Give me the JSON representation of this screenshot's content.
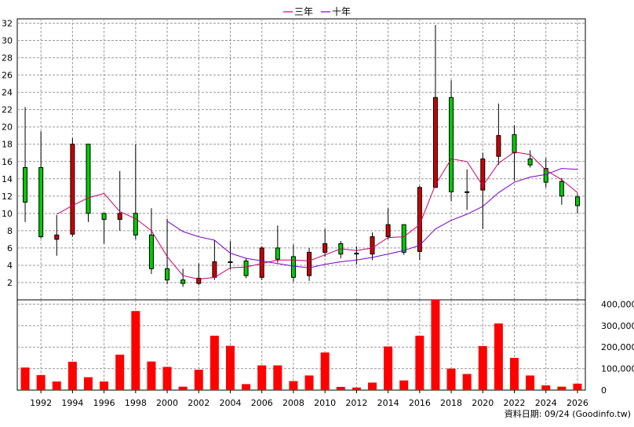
{
  "legend": [
    {
      "name": "三年",
      "color": "#cc0066"
    },
    {
      "name": "十年",
      "color": "#7a00cc"
    }
  ],
  "footer": "資料日期: 09/24  (Goodinfo.tw)",
  "chart_data": {
    "type": "candlestick",
    "x_ticks": [
      "1992",
      "1994",
      "1996",
      "1998",
      "2000",
      "2002",
      "2004",
      "2006",
      "2008",
      "2010",
      "2012",
      "2014",
      "2016",
      "2018",
      "2020",
      "2022",
      "2024",
      "2026"
    ],
    "price_axis": {
      "ylim": [
        0,
        32.5
      ],
      "ticks": [
        2,
        4,
        6,
        8,
        10,
        12,
        14,
        16,
        18,
        20,
        22,
        24,
        26,
        28,
        30,
        32
      ]
    },
    "volume_axis": {
      "ylim": [
        0,
        420000
      ],
      "ticks": [
        "0",
        "100,000",
        "200,000",
        "300,000",
        "400,000"
      ],
      "tick_values": [
        0,
        100000,
        200000,
        300000,
        400000
      ]
    },
    "up_color": "#00cc00",
    "down_color": "#cc0000",
    "volume_color": "#ff0000",
    "candles": [
      {
        "year": 1991,
        "open": 11.3,
        "high": 22.3,
        "low": 9.0,
        "close": 15.3
      },
      {
        "year": 1992,
        "open": 7.3,
        "high": 19.5,
        "low": 7.1,
        "close": 15.3
      },
      {
        "year": 1993,
        "open": 7.5,
        "high": 9.8,
        "low": 5.1,
        "close": 7.0
      },
      {
        "year": 1994,
        "open": 18.0,
        "high": 18.7,
        "low": 7.3,
        "close": 7.6
      },
      {
        "year": 1995,
        "open": 10.0,
        "high": 18.0,
        "low": 9.0,
        "close": 18.0
      },
      {
        "year": 1996,
        "open": 9.3,
        "high": 10.0,
        "low": 6.5,
        "close": 10.0
      },
      {
        "year": 1997,
        "open": 10.0,
        "high": 14.9,
        "low": 8.0,
        "close": 9.3
      },
      {
        "year": 1998,
        "open": 7.5,
        "high": 18.0,
        "low": 7.0,
        "close": 10.0
      },
      {
        "year": 1999,
        "open": 3.6,
        "high": 10.6,
        "low": 3.0,
        "close": 7.5
      },
      {
        "year": 2000,
        "open": 2.3,
        "high": 9.4,
        "low": 1.8,
        "close": 3.6
      },
      {
        "year": 2001,
        "open": 1.9,
        "high": 3.6,
        "low": 1.5,
        "close": 2.3
      },
      {
        "year": 2002,
        "open": 2.5,
        "high": 4.2,
        "low": 1.7,
        "close": 1.9
      },
      {
        "year": 2003,
        "open": 4.4,
        "high": 6.9,
        "low": 2.3,
        "close": 2.6
      },
      {
        "year": 2004,
        "open": 4.4,
        "high": 6.8,
        "low": 3.5,
        "close": 4.4
      },
      {
        "year": 2005,
        "open": 2.8,
        "high": 4.8,
        "low": 2.5,
        "close": 4.5
      },
      {
        "year": 2006,
        "open": 6.0,
        "high": 6.2,
        "low": 2.3,
        "close": 2.6
      },
      {
        "year": 2007,
        "open": 4.7,
        "high": 8.6,
        "low": 4.3,
        "close": 6.0
      },
      {
        "year": 2008,
        "open": 2.6,
        "high": 6.4,
        "low": 2.1,
        "close": 5.0
      },
      {
        "year": 2009,
        "open": 5.5,
        "high": 6.0,
        "low": 2.2,
        "close": 2.8
      },
      {
        "year": 2010,
        "open": 6.5,
        "high": 8.2,
        "low": 5.0,
        "close": 5.5
      },
      {
        "year": 2011,
        "open": 5.3,
        "high": 6.8,
        "low": 4.8,
        "close": 6.5
      },
      {
        "year": 2012,
        "open": 5.4,
        "high": 6.2,
        "low": 4.1,
        "close": 5.3
      },
      {
        "year": 2013,
        "open": 7.3,
        "high": 7.8,
        "low": 4.6,
        "close": 5.3
      },
      {
        "year": 2014,
        "open": 8.7,
        "high": 10.6,
        "low": 7.0,
        "close": 7.3
      },
      {
        "year": 2015,
        "open": 5.5,
        "high": 8.7,
        "low": 5.2,
        "close": 8.7
      },
      {
        "year": 2016,
        "open": 13.0,
        "high": 13.2,
        "low": 4.6,
        "close": 5.6
      },
      {
        "year": 2017,
        "open": 23.4,
        "high": 31.8,
        "low": 13.0,
        "close": 13.0
      },
      {
        "year": 2018,
        "open": 12.5,
        "high": 25.4,
        "low": 11.4,
        "close": 23.4
      },
      {
        "year": 2019,
        "open": 12.5,
        "high": 15.1,
        "low": 10.4,
        "close": 12.5
      },
      {
        "year": 2020,
        "open": 16.3,
        "high": 17.0,
        "low": 8.2,
        "close": 12.7
      },
      {
        "year": 2021,
        "open": 19.0,
        "high": 22.7,
        "low": 15.6,
        "close": 16.6
      },
      {
        "year": 2022,
        "open": 17.0,
        "high": 20.2,
        "low": 13.8,
        "close": 19.1
      },
      {
        "year": 2023,
        "open": 15.6,
        "high": 17.3,
        "low": 15.3,
        "close": 16.3
      },
      {
        "year": 2024,
        "open": 13.6,
        "high": 16.4,
        "low": 13.0,
        "close": 15.2
      },
      {
        "year": 2025,
        "open": 12.0,
        "high": 14.1,
        "low": 11.0,
        "close": 13.7
      },
      {
        "year": 2026,
        "open": 10.9,
        "high": 12.3,
        "low": 10.0,
        "close": 11.9
      }
    ],
    "volume": [
      {
        "year": 1991,
        "value": 105000
      },
      {
        "year": 1992,
        "value": 70000
      },
      {
        "year": 1993,
        "value": 40000
      },
      {
        "year": 1994,
        "value": 132000
      },
      {
        "year": 1995,
        "value": 60000
      },
      {
        "year": 1996,
        "value": 40000
      },
      {
        "year": 1997,
        "value": 165000
      },
      {
        "year": 1998,
        "value": 368000
      },
      {
        "year": 1999,
        "value": 133000
      },
      {
        "year": 2000,
        "value": 108000
      },
      {
        "year": 2001,
        "value": 16000
      },
      {
        "year": 2002,
        "value": 95000
      },
      {
        "year": 2003,
        "value": 253000
      },
      {
        "year": 2004,
        "value": 206000
      },
      {
        "year": 2005,
        "value": 28000
      },
      {
        "year": 2006,
        "value": 115000
      },
      {
        "year": 2007,
        "value": 115000
      },
      {
        "year": 2008,
        "value": 42000
      },
      {
        "year": 2009,
        "value": 68000
      },
      {
        "year": 2010,
        "value": 175000
      },
      {
        "year": 2011,
        "value": 15000
      },
      {
        "year": 2012,
        "value": 12000
      },
      {
        "year": 2013,
        "value": 35000
      },
      {
        "year": 2014,
        "value": 203000
      },
      {
        "year": 2015,
        "value": 45000
      },
      {
        "year": 2016,
        "value": 253000
      },
      {
        "year": 2017,
        "value": 425000
      },
      {
        "year": 2018,
        "value": 100000
      },
      {
        "year": 2019,
        "value": 75000
      },
      {
        "year": 2020,
        "value": 205000
      },
      {
        "year": 2021,
        "value": 310000
      },
      {
        "year": 2022,
        "value": 150000
      },
      {
        "year": 2023,
        "value": 68000
      },
      {
        "year": 2024,
        "value": 22000
      },
      {
        "year": 2025,
        "value": 16000
      },
      {
        "year": 2026,
        "value": 30000
      }
    ],
    "series": [
      {
        "name": "三年",
        "color": "#cc0066",
        "points": [
          {
            "year": 1993,
            "value": 9.9
          },
          {
            "year": 1994,
            "value": 10.9
          },
          {
            "year": 1995,
            "value": 11.8
          },
          {
            "year": 1996,
            "value": 12.3
          },
          {
            "year": 1997,
            "value": 10.2
          },
          {
            "year": 1998,
            "value": 9.4
          },
          {
            "year": 1999,
            "value": 8.0
          },
          {
            "year": 2000,
            "value": 5.0
          },
          {
            "year": 2001,
            "value": 2.8
          },
          {
            "year": 2002,
            "value": 2.4
          },
          {
            "year": 2003,
            "value": 2.6
          },
          {
            "year": 2004,
            "value": 3.7
          },
          {
            "year": 2005,
            "value": 3.8
          },
          {
            "year": 2006,
            "value": 4.2
          },
          {
            "year": 2007,
            "value": 4.6
          },
          {
            "year": 2008,
            "value": 4.6
          },
          {
            "year": 2009,
            "value": 4.5
          },
          {
            "year": 2010,
            "value": 5.2
          },
          {
            "year": 2011,
            "value": 5.9
          },
          {
            "year": 2012,
            "value": 5.7
          },
          {
            "year": 2013,
            "value": 6.0
          },
          {
            "year": 2014,
            "value": 7.2
          },
          {
            "year": 2015,
            "value": 7.3
          },
          {
            "year": 2016,
            "value": 8.7
          },
          {
            "year": 2017,
            "value": 13.3
          },
          {
            "year": 2018,
            "value": 16.3
          },
          {
            "year": 2019,
            "value": 16.0
          },
          {
            "year": 2020,
            "value": 13.2
          },
          {
            "year": 2021,
            "value": 15.8
          },
          {
            "year": 2022,
            "value": 17.1
          },
          {
            "year": 2023,
            "value": 16.8
          },
          {
            "year": 2024,
            "value": 15.0
          },
          {
            "year": 2025,
            "value": 13.9
          },
          {
            "year": 2026,
            "value": 12.4
          }
        ]
      },
      {
        "name": "十年",
        "color": "#7a00cc",
        "points": [
          {
            "year": 2000,
            "value": 9.1
          },
          {
            "year": 2001,
            "value": 7.9
          },
          {
            "year": 2002,
            "value": 7.3
          },
          {
            "year": 2003,
            "value": 6.9
          },
          {
            "year": 2004,
            "value": 5.4
          },
          {
            "year": 2005,
            "value": 4.8
          },
          {
            "year": 2006,
            "value": 4.5
          },
          {
            "year": 2007,
            "value": 4.2
          },
          {
            "year": 2008,
            "value": 3.9
          },
          {
            "year": 2009,
            "value": 3.7
          },
          {
            "year": 2010,
            "value": 4.1
          },
          {
            "year": 2011,
            "value": 4.4
          },
          {
            "year": 2012,
            "value": 4.6
          },
          {
            "year": 2013,
            "value": 4.9
          },
          {
            "year": 2014,
            "value": 5.3
          },
          {
            "year": 2015,
            "value": 5.7
          },
          {
            "year": 2016,
            "value": 6.3
          },
          {
            "year": 2017,
            "value": 8.2
          },
          {
            "year": 2018,
            "value": 9.2
          },
          {
            "year": 2019,
            "value": 9.9
          },
          {
            "year": 2020,
            "value": 10.8
          },
          {
            "year": 2021,
            "value": 12.4
          },
          {
            "year": 2022,
            "value": 13.6
          },
          {
            "year": 2023,
            "value": 14.2
          },
          {
            "year": 2024,
            "value": 14.5
          },
          {
            "year": 2025,
            "value": 15.2
          },
          {
            "year": 2026,
            "value": 15.1
          }
        ]
      }
    ]
  }
}
